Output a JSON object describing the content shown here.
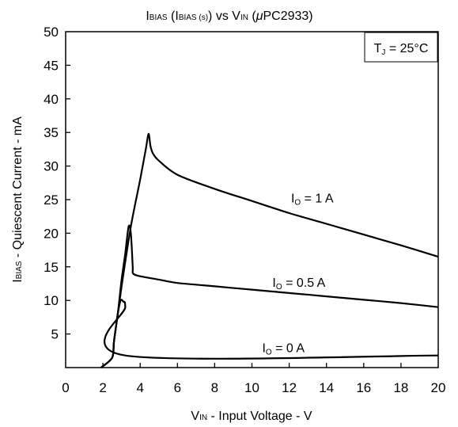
{
  "chart_data": {
    "type": "line",
    "title": {
      "a": "I",
      "a_sub": "BIAS",
      "b": " (I",
      "b_sub": "BIAS (s)",
      "c": ") vs V",
      "c_sub": "IN",
      "d": " (",
      "mu": "μ",
      "e": "PC2933)"
    },
    "xlabel": {
      "main": "V",
      "sub": "IN",
      "rest": " - Input Voltage - V"
    },
    "ylabel": {
      "main": "I",
      "sub": "BIAS",
      "rest": " - Quiescent Current - mA"
    },
    "annotation": {
      "main": "T",
      "sub": "J",
      "rest": " = 25°C"
    },
    "xlim": [
      0,
      20
    ],
    "ylim": [
      0,
      50
    ],
    "x_ticks": [
      "0",
      "2",
      "4",
      "6",
      "8",
      "10",
      "12",
      "14",
      "16",
      "18",
      "20"
    ],
    "y_ticks": [
      "5",
      "10",
      "15",
      "20",
      "25",
      "30",
      "35",
      "40",
      "45",
      "50"
    ],
    "grid": false,
    "series": [
      {
        "name": {
          "main": "I",
          "sub": "O",
          "rest": " = 1 A"
        },
        "x": [
          1.9,
          2.5,
          2.6,
          3.0,
          3.5,
          4.0,
          4.3,
          4.45,
          4.55,
          4.7,
          5.0,
          6.0,
          8.0,
          10.0,
          12.0,
          14.0,
          16.0,
          18.0,
          20.0
        ],
        "y": [
          0,
          1.5,
          4,
          12,
          21,
          28,
          32.5,
          34.8,
          33,
          31.8,
          30.8,
          28.7,
          26.6,
          24.8,
          23.0,
          21.4,
          19.8,
          18.2,
          16.5
        ]
      },
      {
        "name": {
          "main": "I",
          "sub": "O",
          "rest": " = 0.5 A"
        },
        "x": [
          1.9,
          2.5,
          2.6,
          2.8,
          3.0,
          3.2,
          3.38,
          3.5,
          3.6,
          3.62,
          4.0,
          5.0,
          6.0,
          8.0,
          10.0,
          12.0,
          14.0,
          16.0,
          18.0,
          20.0
        ],
        "y": [
          0,
          1.5,
          4,
          8,
          13,
          17,
          21,
          20,
          15,
          14,
          13.6,
          13.1,
          12.6,
          12.1,
          11.6,
          11.1,
          10.6,
          10.1,
          9.6,
          9.0
        ],
        "curvy": false
      },
      {
        "name": {
          "main": "I",
          "sub": "O",
          "rest": " = 0 A"
        },
        "x": [
          1.9,
          2.5,
          2.6,
          2.8,
          2.95,
          3.1,
          3.2,
          3.2,
          20.0
        ],
        "y": [
          0,
          1.5,
          4,
          8,
          10,
          9.8,
          9,
          1.8,
          1.8
        ]
      }
    ]
  }
}
